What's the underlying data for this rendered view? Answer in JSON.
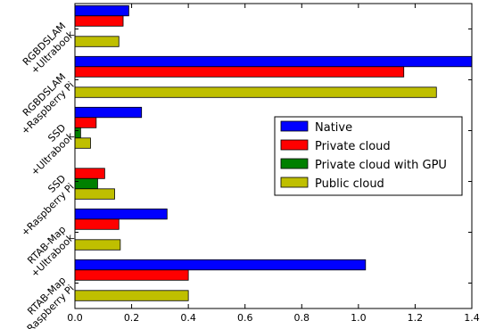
{
  "chart_data": {
    "type": "bar",
    "orientation": "horizontal",
    "categories": [
      [
        "RGBDSLAM",
        "+Ultrabook"
      ],
      [
        "RGBDSLAM",
        "+Raspberry Pi"
      ],
      [
        "SSD",
        "+Ultrabook"
      ],
      [
        "SSD",
        "+Raspberry Pi"
      ],
      [
        "RTAB-Map",
        "+Ultrabook"
      ],
      [
        "RTAB-Map",
        "+Raspberry Pi"
      ]
    ],
    "series": [
      {
        "name": "Native",
        "color": "#0000ff",
        "values": [
          0.19,
          1.4,
          0.235,
          null,
          0.325,
          1.025
        ]
      },
      {
        "name": "Private cloud",
        "color": "#ff0000",
        "values": [
          0.17,
          1.16,
          0.075,
          0.105,
          0.155,
          0.4
        ]
      },
      {
        "name": "Private cloud with GPU",
        "color": "#008000",
        "values": [
          null,
          null,
          0.02,
          0.08,
          null,
          null
        ]
      },
      {
        "name": "Public cloud",
        "color": "#bfbf00",
        "values": [
          0.155,
          1.275,
          0.055,
          0.14,
          0.16,
          0.4
        ]
      }
    ],
    "xlim": [
      0,
      1.4
    ],
    "xticks": [
      "0.0",
      "0.2",
      "0.4",
      "0.6",
      "0.8",
      "1.0",
      "1.2",
      "1.4"
    ],
    "title": "",
    "xlabel": "",
    "ylabel": "",
    "grid": false,
    "legend_position": "center-right"
  }
}
